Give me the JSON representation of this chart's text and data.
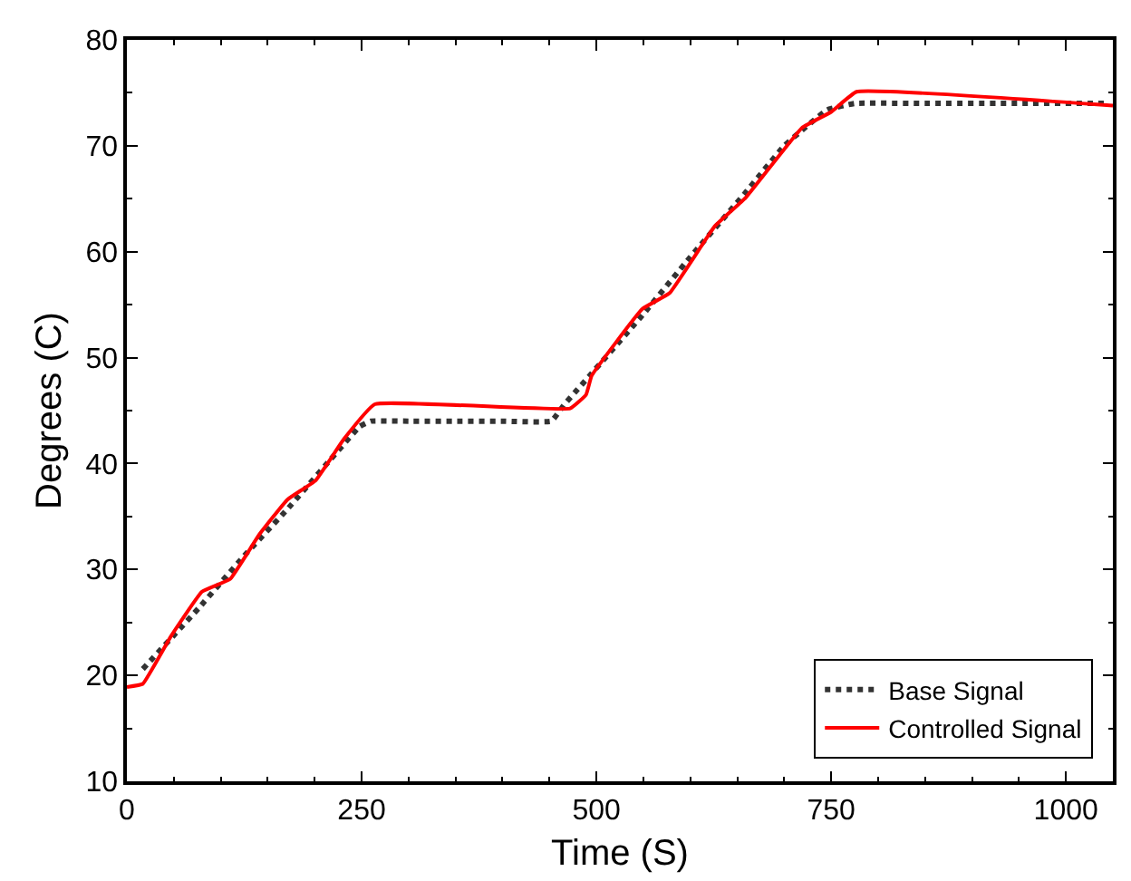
{
  "chart_data": {
    "type": "line",
    "xlabel": "Time (S)",
    "ylabel": "Degrees (C)",
    "xlim": [
      0,
      1050
    ],
    "ylim": [
      10,
      80
    ],
    "xticks": [
      0,
      250,
      500,
      750,
      1000
    ],
    "yticks": [
      10,
      20,
      30,
      40,
      50,
      60,
      70,
      80
    ],
    "legend": "bottom right",
    "series": [
      {
        "name": "Base Signal",
        "color": "#333333",
        "line_style": "dotted",
        "x": [
          17,
          77,
          124,
          171,
          217,
          248,
          260,
          300,
          350,
          400,
          452,
          466,
          480,
          549,
          600,
          659,
          700,
          746,
          775,
          850,
          950,
          1045
        ],
        "values": [
          20.6,
          26.4,
          31.2,
          35.7,
          40.4,
          43.5,
          44,
          44,
          44,
          44,
          44,
          45.6,
          47,
          54,
          59.5,
          65.6,
          70,
          73.4,
          74,
          74,
          74,
          74
        ]
      },
      {
        "name": "Controlled Signal",
        "color": "#ff0000",
        "line_style": "solid",
        "x": [
          0,
          17,
          47,
          80,
          110,
          141,
          171,
          201,
          231,
          264,
          472,
          489,
          495,
          549,
          578,
          626,
          659,
          719,
          750,
          777,
          1050
        ],
        "values": [
          18.9,
          19.2,
          23.7,
          27.9,
          29.1,
          33.3,
          36.6,
          38.4,
          42.3,
          45.6,
          45.2,
          46.5,
          48.3,
          54.6,
          56.1,
          62.4,
          65.1,
          71.7,
          73.2,
          75.1,
          73.8
        ]
      }
    ]
  }
}
